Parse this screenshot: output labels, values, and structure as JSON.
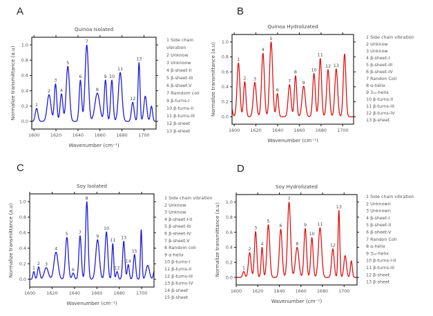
{
  "figure": {
    "panels_count": 4
  },
  "chart_data": [
    {
      "type": "line",
      "panel_letter": "A",
      "title": "Quinoa Isolated",
      "xlabel": "Wavenumber (cm⁻¹)",
      "ylabel": "Normalize transmittance (a.u)",
      "xlim": [
        1598,
        1711
      ],
      "ylim": [
        -0.1,
        1.1
      ],
      "xticks": [
        1600,
        1620,
        1640,
        1660,
        1680,
        1700
      ],
      "yticks": [
        0.0,
        0.2,
        0.4,
        0.6,
        0.8,
        1.0
      ],
      "ytick_labels": [
        "0.0",
        "0.2",
        "0.4",
        "0.6",
        "0.8",
        "1.0"
      ],
      "grid": false,
      "line_color": "#1a1adb",
      "peaks": [
        {
          "label": "1",
          "x": 1602.4,
          "y": 0.17,
          "w": 1.2
        },
        {
          "label": "2",
          "x": 1613.7,
          "y": 0.35,
          "w": 1.7
        },
        {
          "label": "3",
          "x": 1619.6,
          "y": 0.49,
          "w": 1.1
        },
        {
          "label": "4",
          "x": 1625.0,
          "y": 0.36,
          "w": 1.2
        },
        {
          "label": "5",
          "x": 1630.8,
          "y": 0.72,
          "w": 1.5
        },
        {
          "label": "6",
          "x": 1642.2,
          "y": 0.54,
          "w": 1.1
        },
        {
          "label": "7",
          "x": 1648.0,
          "y": 1.0,
          "w": 1.5
        },
        {
          "label": "8",
          "x": 1657.6,
          "y": 0.37,
          "w": 2.2
        },
        {
          "label": "9",
          "x": 1665.0,
          "y": 0.54,
          "w": 1.1
        },
        {
          "label": "10",
          "x": 1670.8,
          "y": 0.54,
          "w": 1.1
        },
        {
          "label": "11",
          "x": 1678.4,
          "y": 0.64,
          "w": 1.6
        },
        {
          "label": "12",
          "x": 1689.8,
          "y": 0.25,
          "w": 1.2
        },
        {
          "label": "13",
          "x": 1695.5,
          "y": 0.77,
          "w": 0.9
        },
        {
          "label": "",
          "x": 1701.2,
          "y": 0.33,
          "w": 1.3
        },
        {
          "label": "",
          "x": 1706.8,
          "y": 0.2,
          "w": 1.0
        }
      ],
      "legend": [
        "1 Side chain",
        "vibration",
        "2 Unknow",
        "3 Unknoow",
        "4 β-sheet-II",
        "5 β-sheet-III",
        "6 β-sheet-V",
        "7 Ramdom coil",
        "9 β-turns-I",
        "10 β-turns-II",
        "11 β-turns-III",
        "12 β-sheet",
        "13 β-sheet"
      ]
    },
    {
      "type": "line",
      "panel_letter": "B",
      "title": "Quinoa Hydrolizated",
      "xlabel": "Wavenumber (cm⁻¹)",
      "ylabel": "Normalize transmittance (a.u)",
      "xlim": [
        1598,
        1710
      ],
      "ylim": [
        -0.1,
        1.1
      ],
      "xticks": [
        1600,
        1620,
        1640,
        1660,
        1680,
        1700
      ],
      "yticks": [
        0.0,
        0.2,
        0.4,
        0.6,
        0.8,
        1.0
      ],
      "ytick_labels": [
        "0.0",
        "0.2",
        "0.4",
        "0.6",
        "0.8",
        "1.0"
      ],
      "grid": false,
      "line_color": "#dd1111",
      "peaks": [
        {
          "label": "",
          "x": 1597.5,
          "y": 0.12,
          "w": 1.0
        },
        {
          "label": "1",
          "x": 1603.9,
          "y": 0.72,
          "w": 1.3
        },
        {
          "label": "2",
          "x": 1609.7,
          "y": 0.47,
          "w": 1.1
        },
        {
          "label": "3",
          "x": 1619.0,
          "y": 0.46,
          "w": 1.4
        },
        {
          "label": "4",
          "x": 1626.5,
          "y": 0.85,
          "w": 1.3
        },
        {
          "label": "5",
          "x": 1634.0,
          "y": 1.0,
          "w": 1.4
        },
        {
          "label": "6",
          "x": 1639.8,
          "y": 0.31,
          "w": 1.0
        },
        {
          "label": "7",
          "x": 1651.0,
          "y": 0.43,
          "w": 1.3
        },
        {
          "label": "8",
          "x": 1656.5,
          "y": 0.55,
          "w": 1.1
        },
        {
          "label": "9",
          "x": 1664.0,
          "y": 0.41,
          "w": 1.5
        },
        {
          "label": "10",
          "x": 1673.5,
          "y": 0.58,
          "w": 1.2
        },
        {
          "label": "11",
          "x": 1679.3,
          "y": 0.78,
          "w": 1.2
        },
        {
          "label": "12",
          "x": 1686.5,
          "y": 0.63,
          "w": 1.3
        },
        {
          "label": "13",
          "x": 1694.0,
          "y": 0.64,
          "w": 1.3
        },
        {
          "label": "",
          "x": 1701.7,
          "y": 0.84,
          "w": 1.2
        }
      ],
      "legend": [
        "1 Side chain vibration",
        "2 Unknow",
        "3 Unknow",
        "4 β-sheet-I",
        "5 β-sheet-III",
        "6 β-sheet-IV",
        "7 Randon Coli",
        "8 α-hélix",
        "9 3₁₀-helix",
        "10 β-turns-II",
        "11 β-turns-III",
        "12 β-turns-IV",
        "13 β-sheet"
      ]
    },
    {
      "type": "line",
      "panel_letter": "C",
      "title": "Soy Isolated",
      "xlabel": "Wavenumber (cm⁻¹)",
      "ylabel": "Normalize transmittance (a.u)",
      "xlim": [
        1600,
        1711
      ],
      "ylim": [
        -0.1,
        1.1
      ],
      "xticks": [
        1600,
        1620,
        1640,
        1660,
        1680,
        1700
      ],
      "yticks": [
        0.0,
        0.2,
        0.4,
        0.6,
        0.8,
        1.0
      ],
      "ytick_labels": [
        "0.0",
        "0.2",
        "0.4",
        "0.6",
        "0.8",
        "1.0"
      ],
      "grid": false,
      "line_color": "#1a1adb",
      "peaks": [
        {
          "label": "1",
          "x": 1603.7,
          "y": 0.1,
          "w": 0.8
        },
        {
          "label": "2",
          "x": 1608.0,
          "y": 0.16,
          "w": 1.0
        },
        {
          "label": "3",
          "x": 1614.8,
          "y": 0.15,
          "w": 1.8
        },
        {
          "label": "4",
          "x": 1623.5,
          "y": 0.35,
          "w": 1.8
        },
        {
          "label": "5",
          "x": 1633.2,
          "y": 0.54,
          "w": 1.3
        },
        {
          "label": "6",
          "x": 1638.8,
          "y": 0.08,
          "w": 1.0
        },
        {
          "label": "7",
          "x": 1645.0,
          "y": 0.56,
          "w": 1.1
        },
        {
          "label": "8",
          "x": 1651.0,
          "y": 1.0,
          "w": 1.1
        },
        {
          "label": "9",
          "x": 1660.6,
          "y": 0.51,
          "w": 1.6
        },
        {
          "label": "10",
          "x": 1668.5,
          "y": 0.61,
          "w": 1.2
        },
        {
          "label": "11",
          "x": 1674.2,
          "y": 0.46,
          "w": 0.8
        },
        {
          "label": "12",
          "x": 1678.0,
          "y": 0.1,
          "w": 0.9
        },
        {
          "label": "13",
          "x": 1684.0,
          "y": 0.49,
          "w": 1.0
        },
        {
          "label": "14",
          "x": 1688.0,
          "y": 0.19,
          "w": 0.9
        },
        {
          "label": "15",
          "x": 1693.6,
          "y": 0.32,
          "w": 1.0
        },
        {
          "label": "",
          "x": 1699.6,
          "y": 0.64,
          "w": 0.7
        },
        {
          "label": "",
          "x": 1705.4,
          "y": 0.18,
          "w": 1.5
        },
        {
          "label": "",
          "x": 1711.5,
          "y": 0.12,
          "w": 1.0
        }
      ],
      "legend": [
        "1 Side chain vibration",
        "2 Unknow",
        "3 Unknow",
        "4 β-sheet-I-II",
        "5 β-sheet-III",
        "6 β-sheet-IV",
        "7 β-sheet-V",
        "8 Random coil",
        "9 α-helix",
        "10 β-turns-I",
        "11 β-turns-II",
        "12 β-turns-III",
        "13 β-turns-IV",
        "14 β-sheet",
        "15 β-sheet"
      ]
    },
    {
      "type": "line",
      "panel_letter": "D",
      "title": "Soy Hydrolizated",
      "xlabel": "Wavenumber (cm⁻¹)",
      "ylabel": "Normalize transmittance (a.u)",
      "xlim": [
        1600,
        1712
      ],
      "ylim": [
        -0.1,
        1.1
      ],
      "xticks": [
        1600,
        1620,
        1640,
        1660,
        1680,
        1700
      ],
      "yticks": [
        0.0,
        0.2,
        0.4,
        0.6,
        0.8,
        1.0
      ],
      "ytick_labels": [
        "0.0",
        "0.2",
        "0.4",
        "0.6",
        "0.8",
        "1.0"
      ],
      "grid": false,
      "line_color": "#dd1111",
      "peaks": [
        {
          "label": "1",
          "x": 1607.0,
          "y": 0.08,
          "w": 1.0
        },
        {
          "label": "2",
          "x": 1612.5,
          "y": 0.33,
          "w": 1.2
        },
        {
          "label": "3",
          "x": 1618.0,
          "y": 0.61,
          "w": 1.1
        },
        {
          "label": "4",
          "x": 1624.0,
          "y": 0.4,
          "w": 0.9
        },
        {
          "label": "5",
          "x": 1629.8,
          "y": 0.7,
          "w": 1.3
        },
        {
          "label": "6",
          "x": 1641.3,
          "y": 0.64,
          "w": 1.3
        },
        {
          "label": "7",
          "x": 1649.0,
          "y": 1.0,
          "w": 1.4
        },
        {
          "label": "8",
          "x": 1656.5,
          "y": 0.4,
          "w": 1.6
        },
        {
          "label": "9",
          "x": 1664.0,
          "y": 0.65,
          "w": 1.2
        },
        {
          "label": "10",
          "x": 1670.2,
          "y": 0.53,
          "w": 1.1
        },
        {
          "label": "11",
          "x": 1677.7,
          "y": 0.66,
          "w": 1.5
        },
        {
          "label": "12",
          "x": 1689.6,
          "y": 0.38,
          "w": 1.2
        },
        {
          "label": "13",
          "x": 1695.2,
          "y": 0.89,
          "w": 0.8
        },
        {
          "label": "",
          "x": 1701.0,
          "y": 0.29,
          "w": 1.2
        },
        {
          "label": "",
          "x": 1706.7,
          "y": 0.22,
          "w": 0.9
        }
      ],
      "legend": [
        "1 Side chain vibration",
        "2 Unknown",
        "3 Unknown",
        "4 β-sheet-I",
        "5 β-sheet-II",
        "6 β-sheet-V",
        "7 Randon Coli",
        "8 α-hélix",
        "9 3₁₀-helix",
        "10 β-turns-I-II",
        "11 β-turns-III",
        "12 β-sheet",
        "13 β-sheet"
      ]
    }
  ]
}
